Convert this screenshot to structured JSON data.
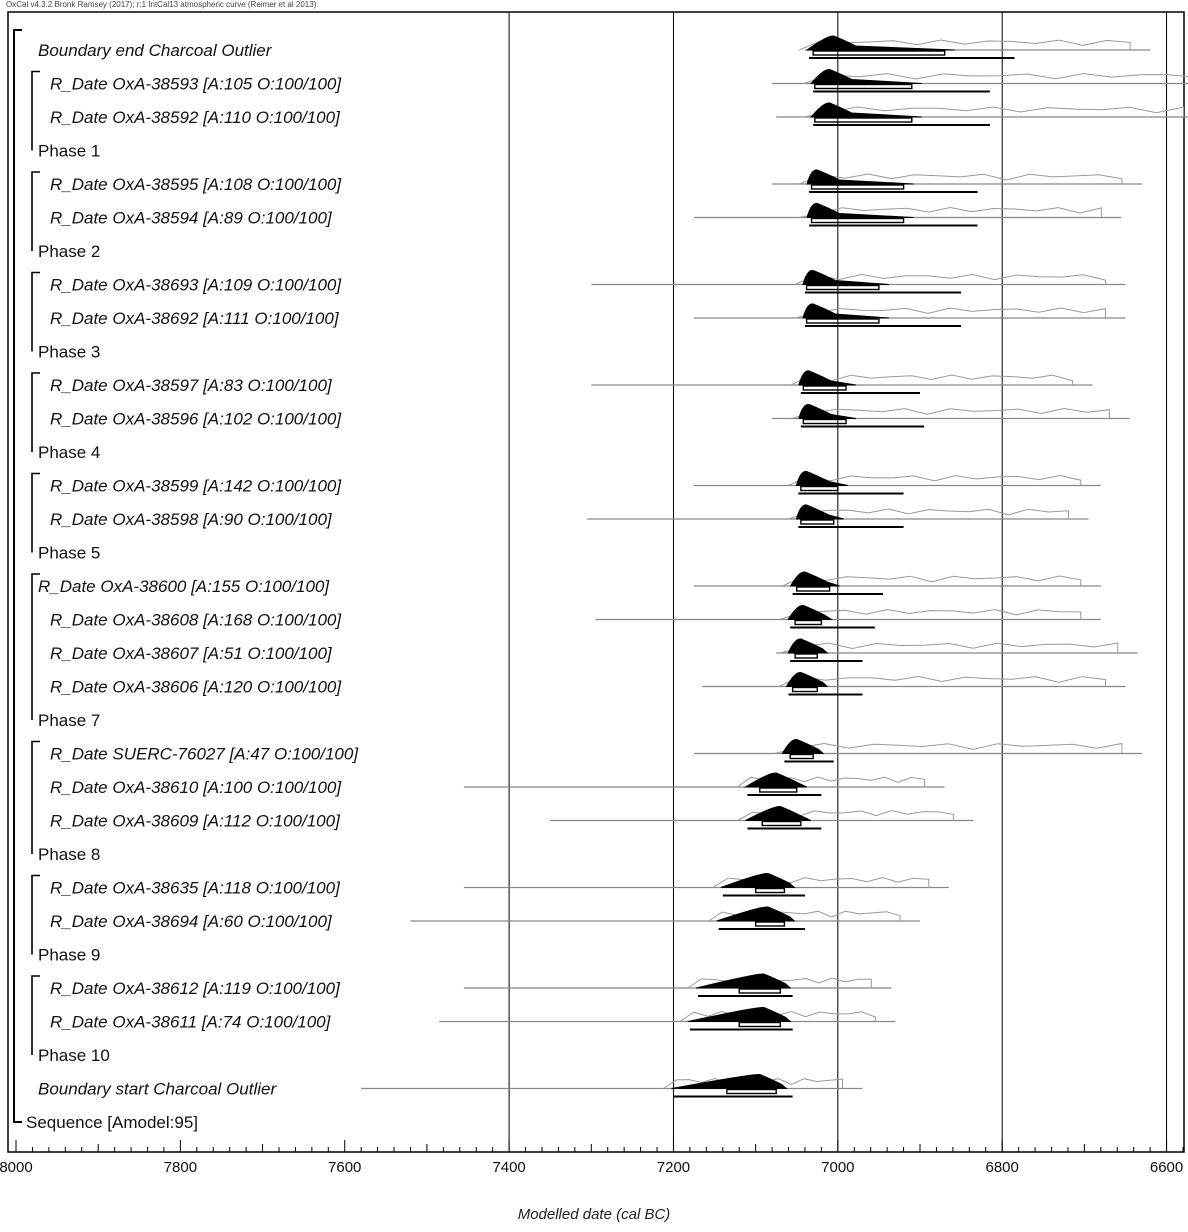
{
  "header": "OxCal v4.3.2 Bronk Ramsey (2017); r:1 IntCal13 atmospheric curve (Reimer et al 2013)",
  "chart_data": {
    "type": "range-plot",
    "xlabel": "Modelled date (cal BC)",
    "xlim": [
      8000,
      6580
    ],
    "xticks": [
      8000,
      7800,
      7600,
      7400,
      7200,
      7000,
      6800,
      6600
    ],
    "grid_lines_at": [
      7400,
      7200,
      7000,
      6800,
      6600
    ],
    "items": [
      {
        "label": "Boundary end Charcoal Outlier",
        "kind": "boundary",
        "peak": 7005,
        "r95": [
          7035,
          6785
        ],
        "r68": [
          7030,
          6870
        ],
        "unmod": [
          7040,
          6620
        ]
      },
      {
        "label": "R_Date OxA-38593 [A:105 O:100/100]",
        "kind": "date",
        "peak": 7010,
        "r95": [
          7030,
          6815
        ],
        "r68": [
          7028,
          6910
        ],
        "unmod": [
          7080,
          6540
        ]
      },
      {
        "label": "R_Date OxA-38592 [A:110 O:100/100]",
        "kind": "date",
        "peak": 7010,
        "r95": [
          7030,
          6815
        ],
        "r68": [
          7028,
          6910
        ],
        "unmod": [
          7075,
          6555
        ]
      },
      {
        "label": "Phase 1",
        "kind": "phase"
      },
      {
        "label": "R_Date OxA-38595 [A:108 O:100/100]",
        "kind": "date",
        "peak": 7025,
        "r95": [
          7035,
          6830
        ],
        "r68": [
          7032,
          6920
        ],
        "unmod": [
          7080,
          6630
        ]
      },
      {
        "label": "R_Date OxA-38594 [A:89 O:100/100]",
        "kind": "date",
        "peak": 7025,
        "r95": [
          7035,
          6830
        ],
        "r68": [
          7032,
          6920
        ],
        "unmod": [
          7175,
          6655
        ]
      },
      {
        "label": "Phase 2",
        "kind": "phase"
      },
      {
        "label": "R_Date OxA-38693 [A:109 O:100/100]",
        "kind": "date",
        "peak": 7030,
        "r95": [
          7040,
          6850
        ],
        "r68": [
          7038,
          6950
        ],
        "unmod": [
          7300,
          6650
        ]
      },
      {
        "label": "R_Date OxA-38692 [A:111 O:100/100]",
        "kind": "date",
        "peak": 7030,
        "r95": [
          7040,
          6850
        ],
        "r68": [
          7038,
          6950
        ],
        "unmod": [
          7175,
          6650
        ]
      },
      {
        "label": "Phase 3",
        "kind": "phase"
      },
      {
        "label": "R_Date OxA-38597 [A:83 O:100/100]",
        "kind": "date",
        "peak": 7035,
        "r95": [
          7045,
          6900
        ],
        "r68": [
          7042,
          6990
        ],
        "unmod": [
          7300,
          6690
        ]
      },
      {
        "label": "R_Date OxA-38596 [A:102 O:100/100]",
        "kind": "date",
        "peak": 7035,
        "r95": [
          7045,
          6895
        ],
        "r68": [
          7042,
          6990
        ],
        "unmod": [
          7080,
          6645
        ]
      },
      {
        "label": "Phase 4",
        "kind": "phase"
      },
      {
        "label": "R_Date OxA-38599 [A:142 O:100/100]",
        "kind": "date",
        "peak": 7038,
        "r95": [
          7048,
          6920
        ],
        "r68": [
          7045,
          7000
        ],
        "unmod": [
          7175,
          6680
        ]
      },
      {
        "label": "R_Date OxA-38598 [A:90 O:100/100]",
        "kind": "date",
        "peak": 7038,
        "r95": [
          7048,
          6920
        ],
        "r68": [
          7045,
          7005
        ],
        "unmod": [
          7305,
          6695
        ]
      },
      {
        "label": "Phase 5",
        "kind": "phase"
      },
      {
        "label": "R_Date OxA-38600 [A:155 O:100/100]",
        "kind": "date",
        "peak": 7040,
        "r95": [
          7055,
          6945
        ],
        "r68": [
          7050,
          7010
        ],
        "unmod": [
          7175,
          6680
        ]
      },
      {
        "label": "R_Date OxA-38608 [A:168 O:100/100]",
        "kind": "date",
        "peak": 7042,
        "r95": [
          7058,
          6955
        ],
        "r68": [
          7052,
          7020
        ],
        "unmod": [
          7295,
          6680
        ]
      },
      {
        "label": "R_Date OxA-38607 [A:51 O:100/100]",
        "kind": "date",
        "peak": 7045,
        "r95": [
          7058,
          6970
        ],
        "r68": [
          7052,
          7025
        ],
        "unmod": [
          7075,
          6635
        ]
      },
      {
        "label": "R_Date OxA-38606 [A:120 O:100/100]",
        "kind": "date",
        "peak": 7045,
        "r95": [
          7060,
          6970
        ],
        "r68": [
          7055,
          7025
        ],
        "unmod": [
          7165,
          6650
        ]
      },
      {
        "label": "Phase 7",
        "kind": "phase"
      },
      {
        "label": "R_Date SUERC-76027 [A:47 O:100/100]",
        "kind": "date",
        "peak": 7050,
        "r95": [
          7065,
          7005
        ],
        "r68": [
          7058,
          7030
        ],
        "unmod": [
          7175,
          6630
        ]
      },
      {
        "label": "R_Date OxA-38610 [A:100 O:100/100]",
        "kind": "date",
        "peak": 7075,
        "r95": [
          7110,
          7020
        ],
        "r68": [
          7095,
          7050
        ],
        "unmod": [
          7455,
          6870
        ]
      },
      {
        "label": "R_Date OxA-38609 [A:112 O:100/100]",
        "kind": "date",
        "peak": 7070,
        "r95": [
          7110,
          7020
        ],
        "r68": [
          7092,
          7045
        ],
        "unmod": [
          7350,
          6835
        ]
      },
      {
        "label": "Phase 8",
        "kind": "phase"
      },
      {
        "label": "R_Date OxA-38635 [A:118 O:100/100]",
        "kind": "date",
        "peak": 7085,
        "r95": [
          7140,
          7040
        ],
        "r68": [
          7100,
          7065
        ],
        "unmod": [
          7455,
          6865
        ]
      },
      {
        "label": "R_Date OxA-38694 [A:60 O:100/100]",
        "kind": "date",
        "peak": 7085,
        "r95": [
          7145,
          7040
        ],
        "r68": [
          7100,
          7065
        ],
        "unmod": [
          7520,
          6900
        ]
      },
      {
        "label": "Phase 9",
        "kind": "phase"
      },
      {
        "label": "R_Date OxA-38612 [A:119 O:100/100]",
        "kind": "date",
        "peak": 7090,
        "r95": [
          7170,
          7055
        ],
        "r68": [
          7120,
          7070
        ],
        "unmod": [
          7455,
          6935
        ]
      },
      {
        "label": "R_Date OxA-38611 [A:74 O:100/100]",
        "kind": "date",
        "peak": 7090,
        "r95": [
          7180,
          7055
        ],
        "r68": [
          7120,
          7070
        ],
        "unmod": [
          7485,
          6930
        ]
      },
      {
        "label": "Phase 10",
        "kind": "phase"
      },
      {
        "label": "Boundary start Charcoal Outlier",
        "kind": "boundary",
        "peak": 7095,
        "r95": [
          7200,
          7055
        ],
        "r68": [
          7135,
          7075
        ],
        "unmod": [
          7580,
          6970
        ]
      },
      {
        "label": "Sequence [Amodel:95]",
        "kind": "phase"
      }
    ]
  }
}
